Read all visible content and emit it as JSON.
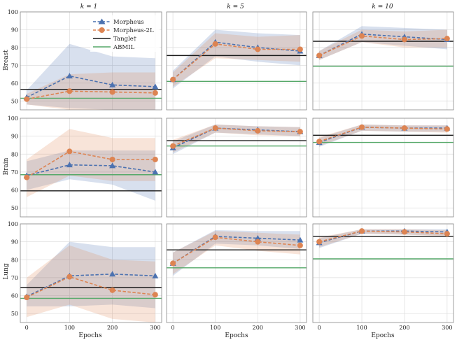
{
  "colors": {
    "morpheus": "#4c72b0",
    "morpheus_2l": "#dd8452",
    "tangle": "#1a1a1a",
    "abmil": "#55a868",
    "panel_bg": "#ffffff",
    "grid": "#dddddd",
    "panel_border": "#888888"
  },
  "legend": {
    "morpheus": "Morpheus",
    "morpheus_2l": "Morpheus-2L",
    "tangle": "Tangle†",
    "abmil": "ABMIL"
  },
  "chart_data": {
    "type": "line",
    "columns": [
      "k = 1",
      "k = 5",
      "k = 10"
    ],
    "rows": [
      "Breast",
      "Brain",
      "Lung"
    ],
    "x": [
      0,
      100,
      200,
      300
    ],
    "xticks": [
      "0",
      "100",
      "200",
      "300"
    ],
    "xlabel": "Epochs",
    "xlim": [
      -15,
      315
    ],
    "row_axes": [
      {
        "ylim": [
          45,
          100
        ],
        "yticks": [
          "50",
          "60",
          "70",
          "80",
          "90",
          "100"
        ],
        "ytick_values": [
          50,
          60,
          70,
          80,
          90,
          100
        ]
      },
      {
        "ylim": [
          45,
          100
        ],
        "yticks": [
          "50",
          "60",
          "70",
          "80",
          "90",
          "100"
        ],
        "ytick_values": [
          50,
          60,
          70,
          80,
          90,
          100
        ]
      },
      {
        "ylim": [
          45,
          100
        ],
        "yticks": [
          "50",
          "60",
          "70",
          "80",
          "90",
          "100"
        ],
        "ytick_values": [
          50,
          60,
          70,
          80,
          90,
          100
        ]
      }
    ],
    "panels": [
      {
        "row": "Breast",
        "column": "k = 1",
        "morpheus": {
          "mean": [
            52,
            64,
            59,
            58
          ],
          "lower": [
            48,
            46,
            45,
            45
          ],
          "upper": [
            56,
            82,
            75,
            74
          ]
        },
        "morpheus_2l": {
          "mean": [
            51,
            55.5,
            55,
            54.5
          ],
          "lower": [
            48,
            45,
            45,
            45
          ],
          "upper": [
            54,
            65,
            66,
            66
          ]
        },
        "tangle": 56.5,
        "abmil": 51.5
      },
      {
        "row": "Breast",
        "column": "k = 5",
        "morpheus": {
          "mean": [
            62,
            83,
            80,
            78
          ],
          "lower": [
            57,
            75,
            72,
            70
          ],
          "upper": [
            67,
            90,
            88,
            87
          ]
        },
        "morpheus_2l": {
          "mean": [
            62,
            82,
            79,
            79
          ],
          "lower": [
            58,
            74,
            73,
            72
          ],
          "upper": [
            66,
            88,
            86,
            87
          ]
        },
        "tangle": 75.5,
        "abmil": 61
      },
      {
        "row": "Breast",
        "column": "k = 10",
        "morpheus": {
          "mean": [
            75.5,
            87.5,
            86,
            84.5
          ],
          "lower": [
            73,
            83,
            81,
            79
          ],
          "upper": [
            78,
            92,
            91,
            90
          ]
        },
        "morpheus_2l": {
          "mean": [
            75.5,
            86.5,
            84.5,
            85
          ],
          "lower": [
            73,
            83,
            80,
            80
          ],
          "upper": [
            78,
            90,
            89,
            90
          ]
        },
        "tangle": 83.5,
        "abmil": 69.5
      },
      {
        "row": "Brain",
        "column": "k = 1",
        "morpheus": {
          "mean": [
            68,
            74,
            73.5,
            70
          ],
          "lower": [
            60,
            66,
            63,
            54
          ],
          "upper": [
            76,
            82,
            82,
            82
          ]
        },
        "morpheus_2l": {
          "mean": [
            67,
            81.5,
            77,
            77
          ],
          "lower": [
            56,
            68,
            65,
            65
          ],
          "upper": [
            77,
            94,
            89,
            89
          ]
        },
        "tangle": 59.5,
        "abmil": 68.5
      },
      {
        "row": "Brain",
        "column": "k = 5",
        "morpheus": {
          "mean": [
            83.5,
            94.5,
            93.5,
            92.5
          ],
          "lower": [
            80,
            92,
            91,
            90
          ],
          "upper": [
            87,
            96.5,
            95.5,
            95
          ]
        },
        "morpheus_2l": {
          "mean": [
            84.5,
            94.5,
            93,
            92.5
          ],
          "lower": [
            81,
            92,
            90.5,
            90
          ],
          "upper": [
            88,
            96.5,
            95.5,
            95
          ]
        },
        "tangle": 87.5,
        "abmil": 84.5
      },
      {
        "row": "Brain",
        "column": "k = 10",
        "morpheus": {
          "mean": [
            86.5,
            95,
            94.5,
            94.5
          ],
          "lower": [
            84,
            93,
            92.5,
            92.5
          ],
          "upper": [
            89,
            96.5,
            96,
            96
          ]
        },
        "morpheus_2l": {
          "mean": [
            87,
            95,
            94.5,
            94
          ],
          "lower": [
            84.5,
            93,
            92.5,
            92
          ],
          "upper": [
            89.5,
            96.5,
            96,
            96
          ]
        },
        "tangle": 90.5,
        "abmil": 86.5
      },
      {
        "row": "Lung",
        "column": "k = 1",
        "morpheus": {
          "mean": [
            59.5,
            71,
            72,
            71
          ],
          "lower": [
            54,
            54,
            55,
            53
          ],
          "upper": [
            66,
            90,
            87,
            87
          ]
        },
        "morpheus_2l": {
          "mean": [
            59,
            70.5,
            63,
            60.5
          ],
          "lower": [
            48,
            55,
            47,
            45
          ],
          "upper": [
            70,
            88,
            80,
            79
          ]
        },
        "tangle": 64.5,
        "abmil": 58.5
      },
      {
        "row": "Lung",
        "column": "k = 5",
        "morpheus": {
          "mean": [
            78,
            93,
            92,
            91
          ],
          "lower": [
            71,
            89,
            88,
            86
          ],
          "upper": [
            84,
            96.5,
            96,
            96
          ]
        },
        "morpheus_2l": {
          "mean": [
            78,
            92.5,
            90,
            88
          ],
          "lower": [
            72,
            88,
            85,
            83
          ],
          "upper": [
            84,
            96,
            95,
            94
          ]
        },
        "tangle": 85.5,
        "abmil": 75.5
      },
      {
        "row": "Lung",
        "column": "k = 10",
        "morpheus": {
          "mean": [
            89.5,
            96,
            96,
            95.5
          ],
          "lower": [
            86.5,
            94.5,
            94,
            93.5
          ],
          "upper": [
            92,
            97,
            97,
            97
          ]
        },
        "morpheus_2l": {
          "mean": [
            90,
            96,
            95.5,
            94.5
          ],
          "lower": [
            87,
            94.5,
            94,
            93
          ],
          "upper": [
            92.5,
            97,
            97,
            96.5
          ]
        },
        "tangle": 93,
        "abmil": 80.5
      }
    ]
  }
}
